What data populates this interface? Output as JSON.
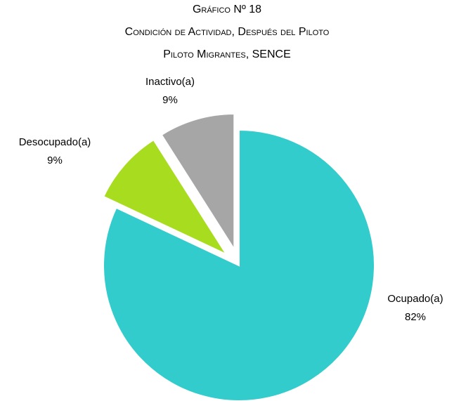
{
  "chart_data": {
    "type": "pie",
    "title": [
      "Gráfico Nº 18",
      "Condición de Actividad, Después del Piloto",
      "Piloto Migrantes, SENCE"
    ],
    "categories": [
      "Ocupado(a)",
      "Desocupado(a)",
      "Inactivo(a)"
    ],
    "values": [
      82,
      9,
      9
    ],
    "value_labels": [
      "82%",
      "9%",
      "9%"
    ],
    "colors": [
      "#33CCCC",
      "#A8DC1E",
      "#A6A6A6"
    ],
    "exploded": [
      false,
      true,
      true
    ]
  }
}
